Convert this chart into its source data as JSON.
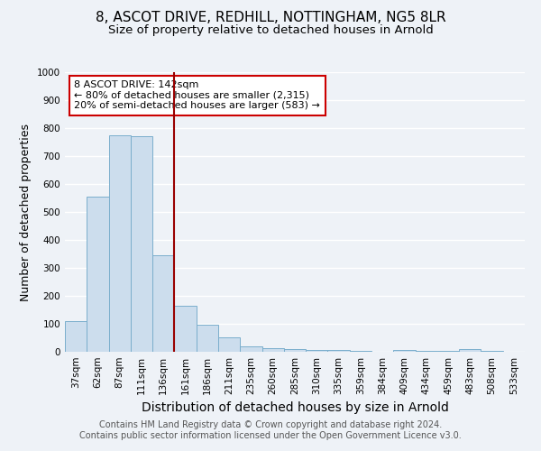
{
  "title": "8, ASCOT DRIVE, REDHILL, NOTTINGHAM, NG5 8LR",
  "subtitle": "Size of property relative to detached houses in Arnold",
  "xlabel": "Distribution of detached houses by size in Arnold",
  "ylabel": "Number of detached properties",
  "categories": [
    "37sqm",
    "62sqm",
    "87sqm",
    "111sqm",
    "136sqm",
    "161sqm",
    "186sqm",
    "211sqm",
    "235sqm",
    "260sqm",
    "285sqm",
    "310sqm",
    "335sqm",
    "359sqm",
    "384sqm",
    "409sqm",
    "434sqm",
    "459sqm",
    "483sqm",
    "508sqm",
    "533sqm"
  ],
  "values": [
    110,
    555,
    775,
    770,
    345,
    163,
    97,
    53,
    18,
    13,
    10,
    8,
    5,
    3,
    0,
    8,
    3,
    3,
    10,
    3,
    0
  ],
  "bar_color": "#ccdded",
  "bar_edge_color": "#7aaecc",
  "ylim": [
    0,
    1000
  ],
  "yticks": [
    0,
    100,
    200,
    300,
    400,
    500,
    600,
    700,
    800,
    900,
    1000
  ],
  "vline_x": 4.5,
  "vline_color": "#990000",
  "annotation_text": "8 ASCOT DRIVE: 142sqm\n← 80% of detached houses are smaller (2,315)\n20% of semi-detached houses are larger (583) →",
  "annotation_box_color": "#ffffff",
  "annotation_box_edge": "#cc0000",
  "footer_line1": "Contains HM Land Registry data © Crown copyright and database right 2024.",
  "footer_line2": "Contains public sector information licensed under the Open Government Licence v3.0.",
  "background_color": "#eef2f7",
  "plot_background": "#eef2f7",
  "grid_color": "#ffffff",
  "title_fontsize": 11,
  "subtitle_fontsize": 9.5,
  "xlabel_fontsize": 10,
  "ylabel_fontsize": 9,
  "tick_fontsize": 7.5,
  "footer_fontsize": 7,
  "annotation_fontsize": 8
}
